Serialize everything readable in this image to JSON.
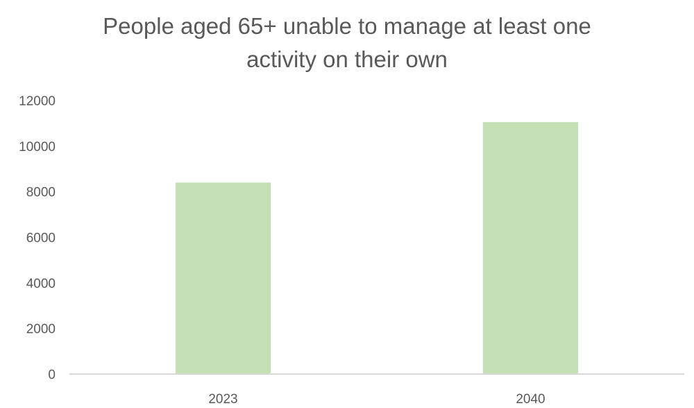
{
  "chart_data": {
    "type": "bar",
    "title_lines": [
      "People aged 65+  unable to manage at least one",
      "activity on their own"
    ],
    "categories": [
      "2023",
      "2040"
    ],
    "series": [
      {
        "values": [
          8400,
          11050
        ],
        "color": "#c5e0b4"
      }
    ],
    "ylim": [
      0,
      12000
    ],
    "yticks": [
      0,
      2000,
      4000,
      6000,
      8000,
      10000,
      12000
    ],
    "grid": false,
    "legend": "none",
    "xlabel": "",
    "ylabel": ""
  },
  "colors": {
    "axis": "#d9d9d9",
    "text": "#595959"
  }
}
